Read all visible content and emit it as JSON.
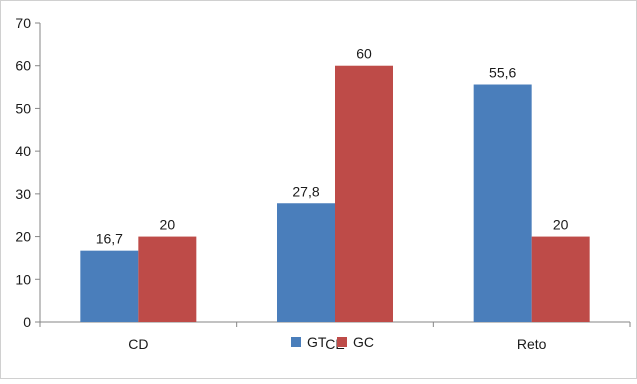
{
  "chart_data": {
    "type": "bar",
    "categories": [
      "CD",
      "CE",
      "Reto"
    ],
    "series": [
      {
        "name": "GT",
        "values": [
          16.7,
          27.8,
          55.6
        ],
        "labels": [
          "16,7",
          "27,8",
          "55,6"
        ],
        "color": "#4a7ebb"
      },
      {
        "name": "GC",
        "values": [
          20,
          60,
          20
        ],
        "labels": [
          "20",
          "60",
          "20"
        ],
        "color": "#be4b48"
      }
    ],
    "ylim": [
      0,
      70
    ],
    "yticks": [
      0,
      10,
      20,
      30,
      40,
      50,
      60,
      70
    ],
    "grid": false,
    "legend_position": "bottom"
  }
}
